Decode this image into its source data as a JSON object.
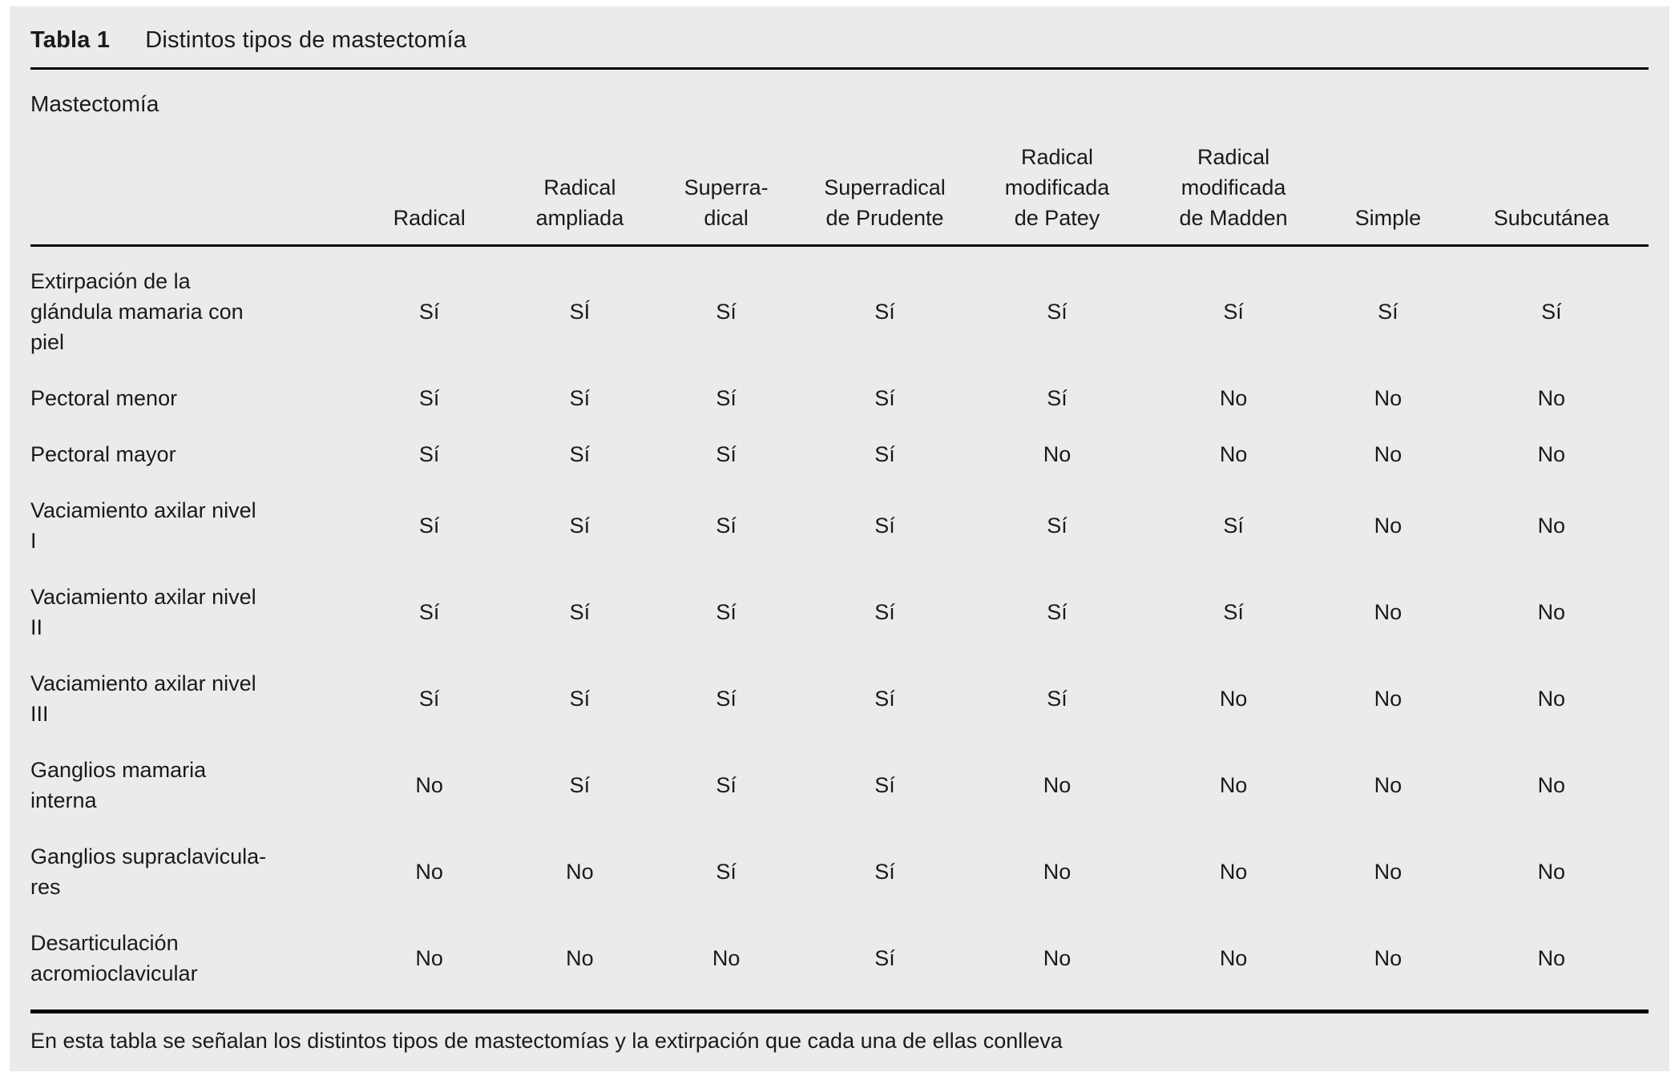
{
  "panel": {
    "caption_label": "Tabla 1",
    "caption_title": "Distintos tipos de mastectomía",
    "group_header": "Mastectomía",
    "footnote": "En esta tabla se señalan los distintos tipos de mastectomías y la extirpación que cada una de ellas conlleva"
  },
  "colors": {
    "panel_bg": "#ebebeb",
    "text": "#1a1a1a",
    "rule": "#000000"
  },
  "table": {
    "columns": [
      "Radical",
      "Radical\nampliada",
      "Superra-\ndical",
      "Superradical\nde Prudente",
      "Radical\nmodificada\nde Patey",
      "Radical\nmodificada\nde Madden",
      "Simple",
      "Subcutánea"
    ],
    "rows": [
      {
        "label": "Extirpación de la\nglándula mamaria con\npiel",
        "values": [
          "Sí",
          "SÍ",
          "Sí",
          "Sí",
          "Sí",
          "Sí",
          "Sí",
          "Sí"
        ]
      },
      {
        "label": "Pectoral menor",
        "values": [
          "Sí",
          "Sí",
          "Sí",
          "Sí",
          "Sí",
          "No",
          "No",
          "No"
        ]
      },
      {
        "label": "Pectoral mayor",
        "values": [
          "Sí",
          "Sí",
          "Sí",
          "Sí",
          "No",
          "No",
          "No",
          "No"
        ]
      },
      {
        "label": "Vaciamiento axilar nivel\nI",
        "values": [
          "Sí",
          "Sí",
          "Sí",
          "Sí",
          "Sí",
          "Sí",
          "No",
          "No"
        ]
      },
      {
        "label": "Vaciamiento axilar nivel\nII",
        "values": [
          "Sí",
          "Sí",
          "Sí",
          "Sí",
          "Sí",
          "Sí",
          "No",
          "No"
        ]
      },
      {
        "label": "Vaciamiento axilar nivel\nIII",
        "values": [
          "Sí",
          "Sí",
          "Sí",
          "Sí",
          "Sí",
          "No",
          "No",
          "No"
        ]
      },
      {
        "label": "Ganglios mamaria\ninterna",
        "values": [
          "No",
          "Sí",
          "Sí",
          "Sí",
          "No",
          "No",
          "No",
          "No"
        ]
      },
      {
        "label": "Ganglios supraclavicula-\nres",
        "values": [
          "No",
          "No",
          "Sí",
          "Sí",
          "No",
          "No",
          "No",
          "No"
        ]
      },
      {
        "label": "Desarticulación\nacromioclavicular",
        "values": [
          "No",
          "No",
          "No",
          "Sí",
          "No",
          "No",
          "No",
          "No"
        ]
      }
    ]
  }
}
